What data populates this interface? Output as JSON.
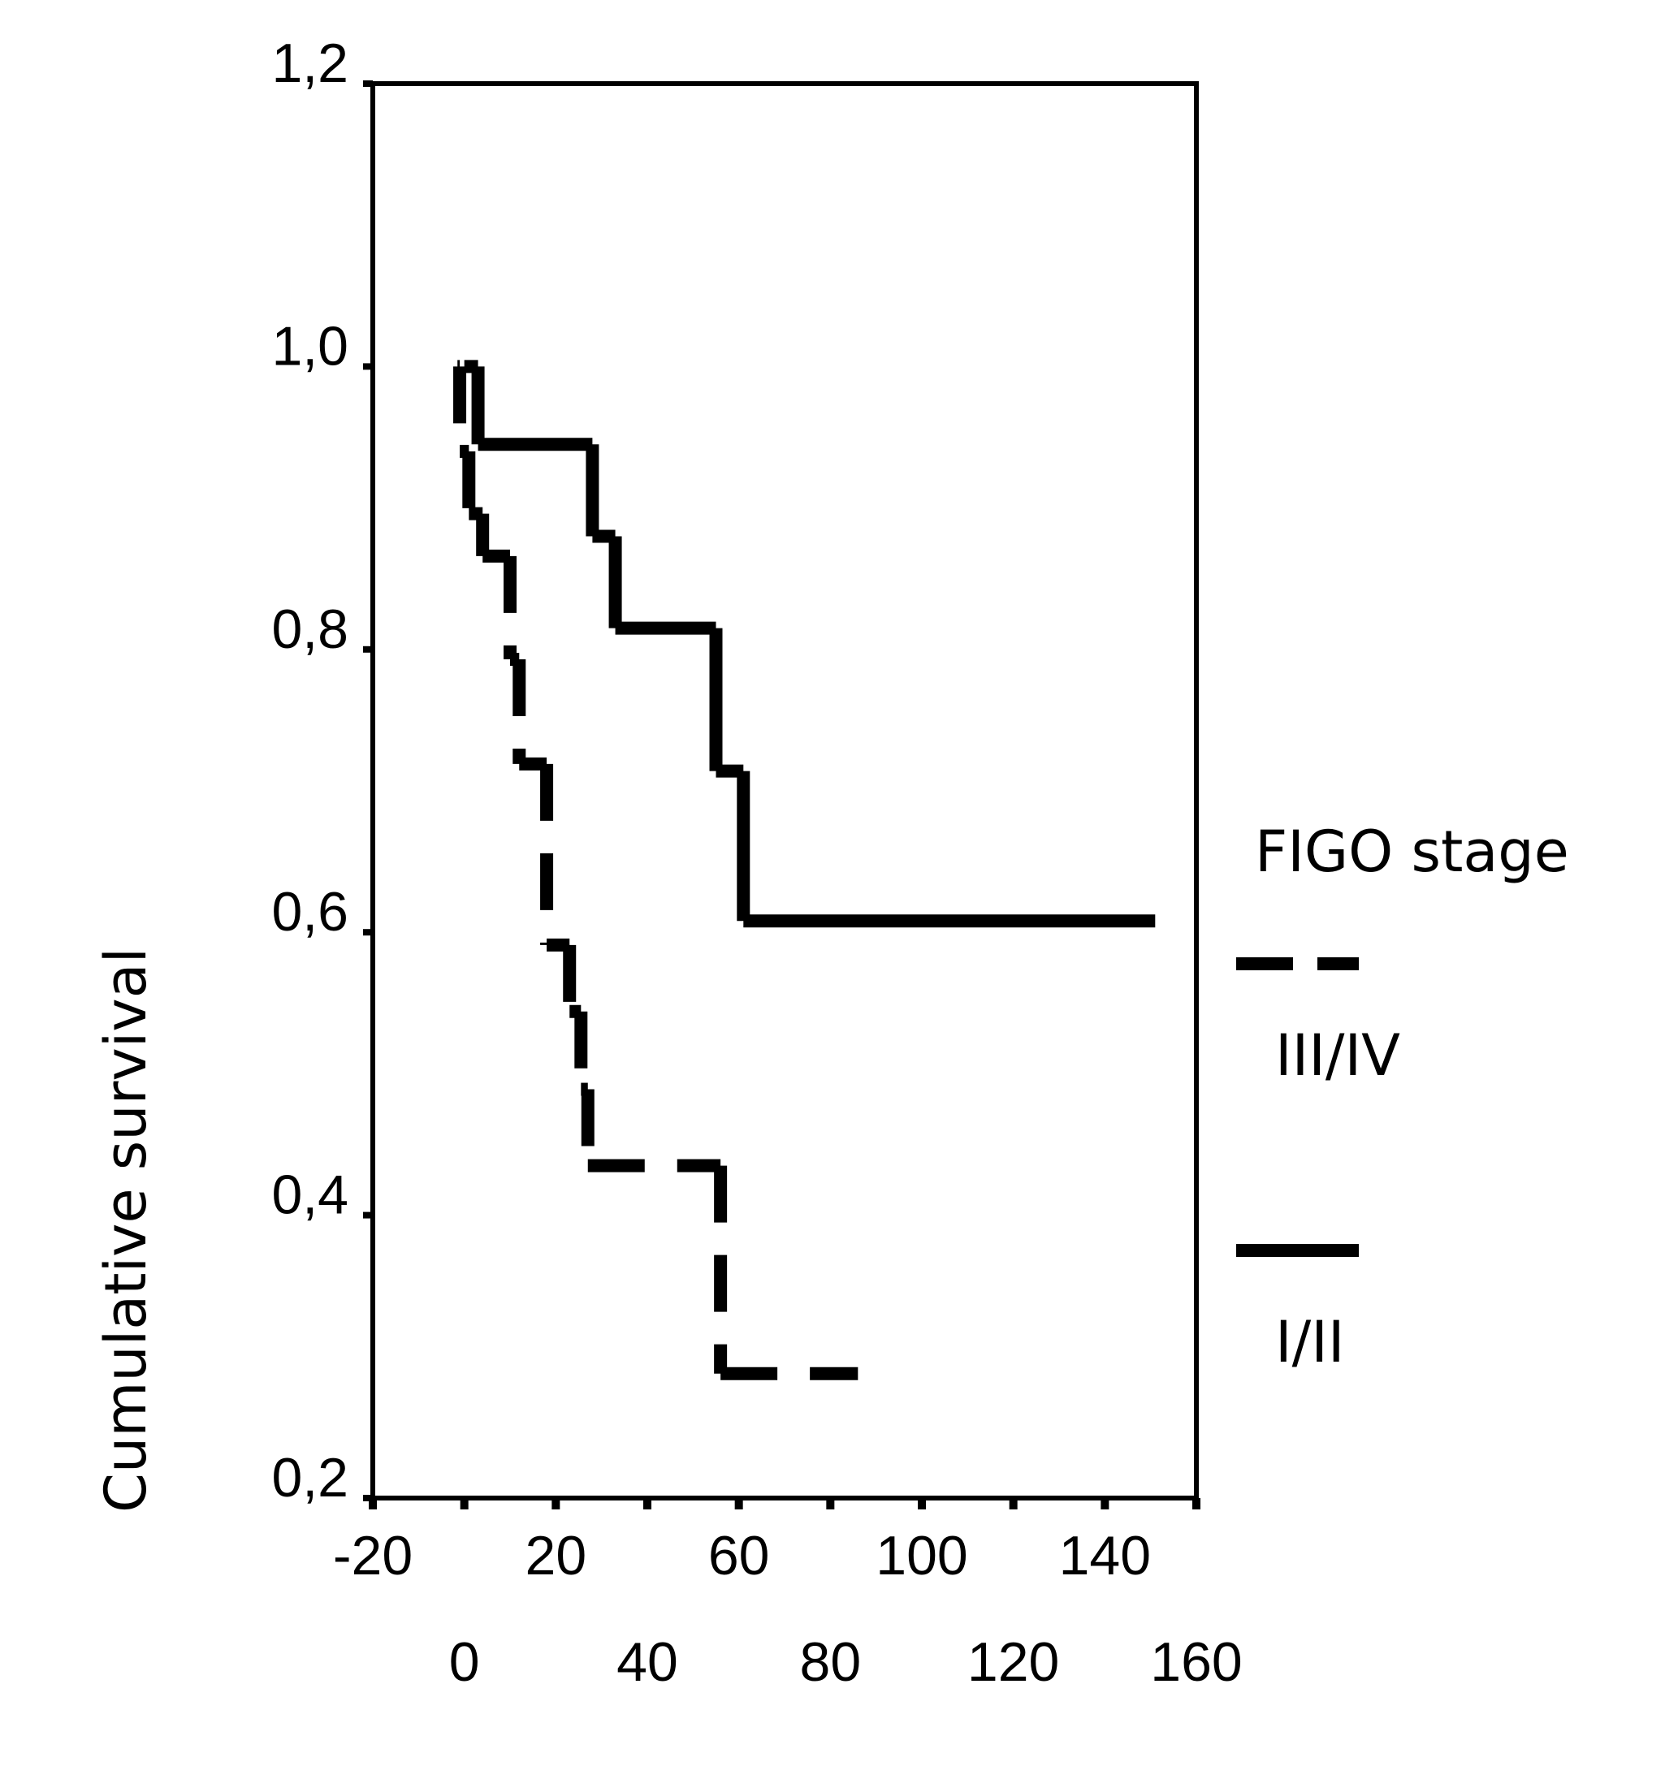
{
  "chart_data": {
    "type": "step",
    "y_label": "Cumulative survival",
    "legend_title": "FIGO stage",
    "xlim": [
      -20,
      160
    ],
    "xticks": [
      -20,
      0,
      20,
      40,
      60,
      80,
      100,
      120,
      140,
      160
    ],
    "ylim": [
      0.2,
      1.2
    ],
    "yticks": [
      {
        "value": 0.2,
        "label": "0,2"
      },
      {
        "value": 0.4,
        "label": "0,4"
      },
      {
        "value": 0.6,
        "label": "0,6"
      },
      {
        "value": 0.8,
        "label": "0,8"
      },
      {
        "value": 1.0,
        "label": "1,0"
      },
      {
        "value": 1.2,
        "label": "1,2"
      }
    ],
    "series": [
      {
        "name": "III/IV",
        "color": "#000000",
        "dashed": true,
        "x": [
          -1.5,
          -1,
          1,
          4,
          10,
          12,
          18,
          23,
          25.5,
          27,
          56,
          86
        ],
        "values": [
          1.0,
          0.94,
          0.896,
          0.866,
          0.793,
          0.719,
          0.591,
          0.544,
          0.489,
          0.435,
          0.288,
          0.288
        ]
      },
      {
        "name": "I/II",
        "color": "#000000",
        "dashed": false,
        "x": [
          0,
          3,
          28,
          33,
          55,
          61,
          151
        ],
        "values": [
          1.0,
          0.945,
          0.88,
          0.815,
          0.714,
          0.608,
          0.608
        ]
      }
    ]
  }
}
